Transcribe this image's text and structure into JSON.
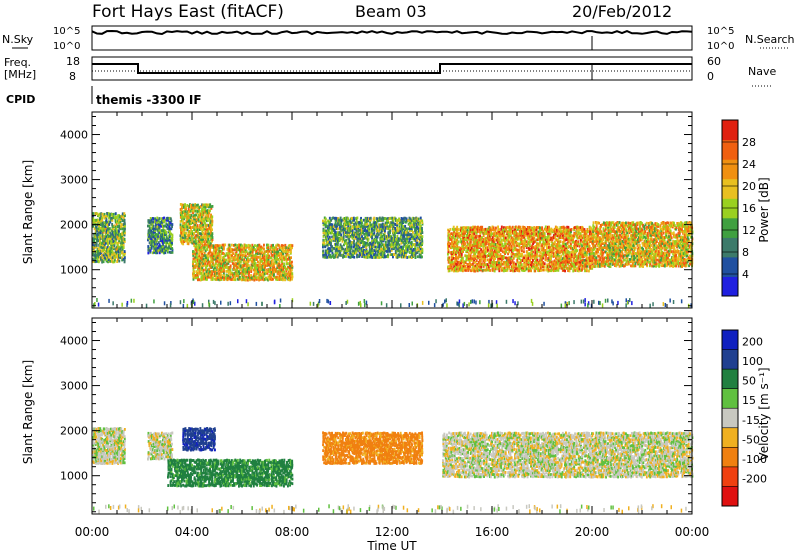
{
  "header": {
    "station": "Fort Hays East (fitACF)",
    "beam": "Beam 03",
    "date": "20/Feb/2012"
  },
  "panel_labels": {
    "nsky": "N.Sky",
    "nsearch": "N.Search",
    "freq_line1": "Freq.",
    "freq_line2": "[MHz]",
    "nave": "Nave",
    "cpid_label": "CPID",
    "cpid_value": "themis -3300 IF"
  },
  "small_axes": {
    "noise_ticks_left": [
      "10^5",
      "10^0"
    ],
    "noise_ticks_right": [
      "10^5",
      "10^0"
    ],
    "freq_ticks_left": [
      "18",
      "8"
    ],
    "nave_ticks_right": [
      "60",
      "0"
    ]
  },
  "colors": {
    "power": [
      "#2020e0",
      "#2050a0",
      "#3c7a6a",
      "#40a040",
      "#9ad020",
      "#e8c020",
      "#f09010",
      "#f06010",
      "#e02010"
    ],
    "velocity": [
      "#e01010",
      "#f04010",
      "#f08010",
      "#f0b020",
      "#c8c8c0",
      "#60c040",
      "#208040",
      "#204090",
      "#1020c0"
    ]
  },
  "chart_data": [
    {
      "type": "heatmap",
      "name": "power",
      "xlabel": "",
      "ylabel": "Slant Range [km]",
      "x_ticks": [
        "00:00",
        "04:00",
        "08:00",
        "12:00",
        "16:00",
        "20:00",
        "00:00"
      ],
      "y_ticks": [
        "1000",
        "2000",
        "3000",
        "4000"
      ],
      "ylim": [
        150,
        4500
      ],
      "colorbar_label": "Power [dB]",
      "colorbar_ticks": [
        "4",
        "8",
        "12",
        "16",
        "20",
        "24",
        "28"
      ],
      "colorbar_range": [
        0,
        32
      ],
      "regions": [
        {
          "t": [
            0.0,
            1.3
          ],
          "r": [
            1200,
            2300
          ],
          "level": 14
        },
        {
          "t": [
            2.2,
            3.2
          ],
          "r": [
            1400,
            2200
          ],
          "level": 10
        },
        {
          "t": [
            3.5,
            4.8
          ],
          "r": [
            1600,
            2500
          ],
          "level": 18
        },
        {
          "t": [
            4.0,
            8.0
          ],
          "r": [
            800,
            1600
          ],
          "level": 20
        },
        {
          "t": [
            9.2,
            13.2
          ],
          "r": [
            1300,
            2200
          ],
          "level": 12
        },
        {
          "t": [
            14.2,
            20.0
          ],
          "r": [
            1000,
            2000
          ],
          "level": 22
        },
        {
          "t": [
            20.0,
            24.0
          ],
          "r": [
            1100,
            2100
          ],
          "level": 20
        }
      ]
    },
    {
      "type": "heatmap",
      "name": "velocity",
      "xlabel": "Time UT",
      "ylabel": "Slant Range [km]",
      "x_ticks": [
        "00:00",
        "04:00",
        "08:00",
        "12:00",
        "16:00",
        "20:00",
        "00:00"
      ],
      "y_ticks": [
        "1000",
        "2000",
        "3000",
        "4000"
      ],
      "ylim": [
        150,
        4500
      ],
      "colorbar_label": "Velocity [m s⁻¹]",
      "colorbar_ticks": [
        "200",
        "100",
        "50",
        "15",
        "-15",
        "-50",
        "-100",
        "-200"
      ],
      "regions": [
        {
          "t": [
            0.0,
            1.3
          ],
          "r": [
            1300,
            2100
          ],
          "v": 0
        },
        {
          "t": [
            2.2,
            3.2
          ],
          "r": [
            1400,
            2000
          ],
          "v": 0
        },
        {
          "t": [
            3.6,
            4.9
          ],
          "r": [
            1600,
            2100
          ],
          "v": 180
        },
        {
          "t": [
            3.0,
            8.0
          ],
          "r": [
            800,
            1400
          ],
          "v": 70
        },
        {
          "t": [
            9.2,
            13.2
          ],
          "r": [
            1300,
            2000
          ],
          "v": -70
        },
        {
          "t": [
            14.0,
            24.0
          ],
          "r": [
            1000,
            2000
          ],
          "v": 0
        }
      ]
    }
  ]
}
